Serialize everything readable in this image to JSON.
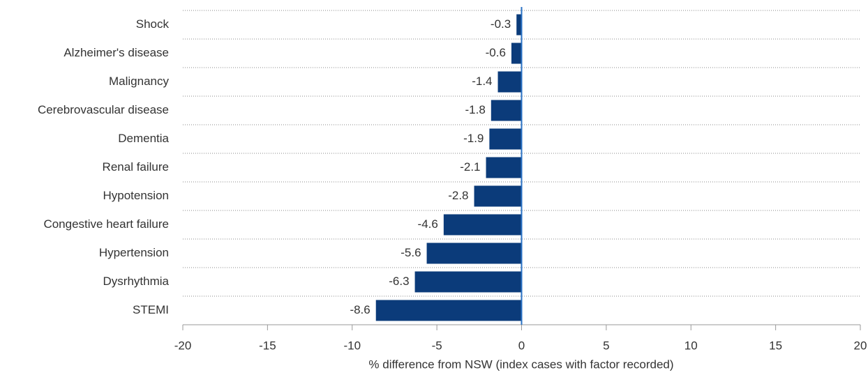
{
  "chart_data": {
    "type": "bar",
    "orientation": "horizontal",
    "x_label": "% difference from NSW (index cases with factor recorded)",
    "categories": [
      "Shock",
      "Alzheimer's disease",
      "Malignancy",
      "Cerebrovascular disease",
      "Dementia",
      "Renal failure",
      "Hypotension",
      "Congestive heart failure",
      "Hypertension",
      "Dysrhythmia",
      "STEMI"
    ],
    "values": [
      -0.3,
      -0.6,
      -1.4,
      -1.8,
      -1.9,
      -2.1,
      -2.8,
      -4.6,
      -5.6,
      -6.3,
      -8.6
    ],
    "color": "#0b3b7a",
    "xlim": [
      -20,
      20
    ],
    "xticks": [
      -20,
      -15,
      -10,
      -5,
      0,
      5,
      10,
      15,
      20
    ]
  }
}
